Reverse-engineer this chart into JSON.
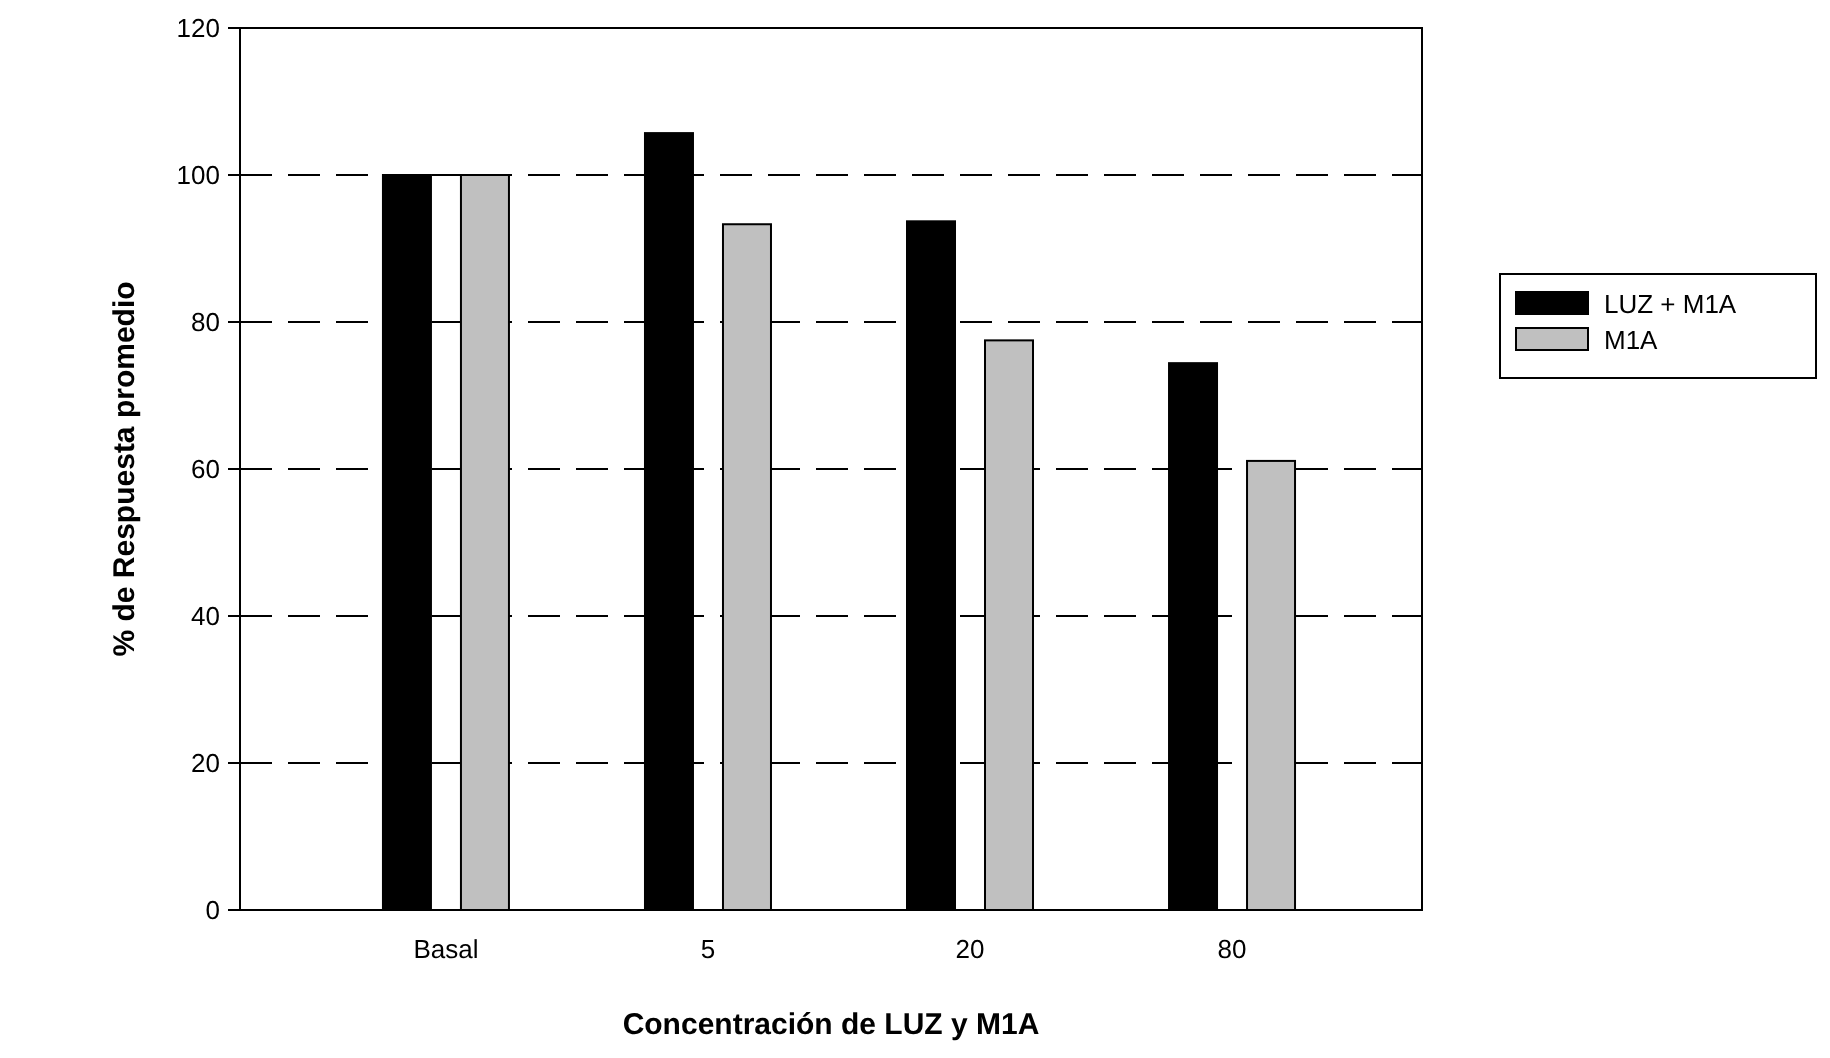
{
  "chart_data": {
    "type": "bar",
    "xlabel": "Concentración de LUZ y M1A",
    "ylabel": "% de Respuesta promedio",
    "categories": [
      "Basal",
      "5",
      "20",
      "80"
    ],
    "series": [
      {
        "name": "LUZ + M1A",
        "color": "#000000",
        "values": [
          100,
          105.7,
          93.7,
          74.4
        ]
      },
      {
        "name": "M1A",
        "color": "#c0c0c0",
        "values": [
          100,
          93.3,
          77.5,
          61.1
        ]
      }
    ],
    "ylim": [
      0,
      120
    ],
    "yticks": [
      0,
      20,
      40,
      60,
      80,
      100,
      120
    ],
    "grid": "y",
    "legend": "right"
  }
}
